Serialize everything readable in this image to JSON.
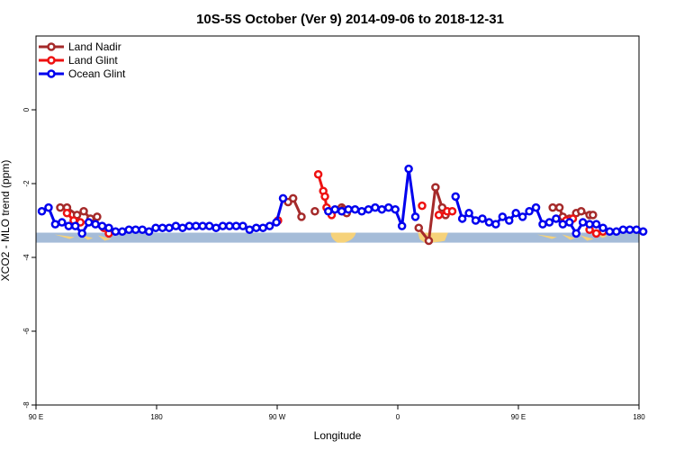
{
  "chart_data": {
    "type": "line",
    "title": "10S-5S October (Ver 9)   2014-09-06 to 2018-12-31",
    "xlabel": "Longitude",
    "ylabel": "XCO2 - MLO trend (ppm)",
    "xlim": [
      90,
      450
    ],
    "ylim": [
      -8,
      2
    ],
    "x_ticks": [
      {
        "value": 90,
        "label": "90 E"
      },
      {
        "value": 162,
        "label": "180"
      },
      {
        "value": 234,
        "label": "90 W"
      },
      {
        "value": 306,
        "label": "0"
      },
      {
        "value": 378,
        "label": "90 E"
      },
      {
        "value": 450,
        "label": "180"
      }
    ],
    "y_ticks": [
      {
        "value": 0,
        "label": "0"
      },
      {
        "value": -2,
        "label": "-2"
      },
      {
        "value": -4,
        "label": "-4"
      },
      {
        "value": -6,
        "label": "-6"
      },
      {
        "value": -8,
        "label": "-8"
      }
    ],
    "grid": false,
    "legend_position": "top-left",
    "map_band": {
      "y_top": -3.33,
      "y_bottom": -3.6,
      "ocean_color": "#a5bcd8",
      "land_color": "#f6d27a"
    },
    "series": [
      {
        "name": "Land Nadir",
        "color": "#a52a2a",
        "points": [
          [
            104.5,
            -2.65
          ],
          [
            108.5,
            -2.65
          ],
          [
            114.5,
            -2.85
          ],
          [
            118.5,
            -2.75
          ],
          [
            122.5,
            -2.95
          ],
          [
            126.5,
            -2.9
          ],
          [
            240.5,
            -2.5
          ],
          [
            243.5,
            -2.4
          ],
          [
            248.5,
            -2.9
          ],
          [
            256.5,
            -2.75
          ],
          [
            272.5,
            -2.65
          ],
          [
            273.5,
            -2.7
          ],
          [
            275.5,
            -2.8
          ],
          [
            318.5,
            -3.2
          ],
          [
            324.5,
            -3.55
          ],
          [
            328.5,
            -2.1
          ],
          [
            332.5,
            -2.65
          ],
          [
            334.5,
            -2.85
          ],
          [
            398.5,
            -2.65
          ],
          [
            402.5,
            -2.65
          ],
          [
            404.5,
            -2.9
          ],
          [
            408.5,
            -2.95
          ],
          [
            412.5,
            -2.8
          ],
          [
            415.5,
            -2.75
          ],
          [
            420.5,
            -2.85
          ],
          [
            422.5,
            -2.85
          ]
        ]
      },
      {
        "name": "Land Glint",
        "color": "#ee1111",
        "points": [
          [
            108.5,
            -2.8
          ],
          [
            112.5,
            -3.0
          ],
          [
            116.5,
            -3.05
          ],
          [
            130.5,
            -3.2
          ],
          [
            133.5,
            -3.35
          ],
          [
            234.5,
            -3.0
          ],
          [
            258.5,
            -1.75
          ],
          [
            261.5,
            -2.2
          ],
          [
            262.5,
            -2.35
          ],
          [
            263.5,
            -2.65
          ],
          [
            266.5,
            -2.85
          ],
          [
            320.5,
            -2.6
          ],
          [
            330.5,
            -2.85
          ],
          [
            335.5,
            -2.75
          ],
          [
            338.5,
            -2.75
          ],
          [
            406.5,
            -3.0
          ],
          [
            410.5,
            -2.95
          ],
          [
            420.5,
            -3.25
          ],
          [
            424.5,
            -3.35
          ],
          [
            428.5,
            -3.3
          ]
        ]
      },
      {
        "name": "Ocean Glint",
        "color": "#0000ee",
        "points": [
          [
            93.5,
            -2.75
          ],
          [
            97.5,
            -2.65
          ],
          [
            101.5,
            -3.1
          ],
          [
            105.5,
            -3.05
          ],
          [
            109.5,
            -3.15
          ],
          [
            113.5,
            -3.15
          ],
          [
            117.5,
            -3.35
          ],
          [
            121.5,
            -3.05
          ],
          [
            125.5,
            -3.1
          ],
          [
            129.5,
            -3.15
          ],
          [
            133.5,
            -3.2
          ],
          [
            137.5,
            -3.3
          ],
          [
            141.5,
            -3.3
          ],
          [
            145.5,
            -3.25
          ],
          [
            149.5,
            -3.25
          ],
          [
            153.5,
            -3.25
          ],
          [
            157.5,
            -3.3
          ],
          [
            161.5,
            -3.2
          ],
          [
            165.5,
            -3.2
          ],
          [
            169.5,
            -3.2
          ],
          [
            173.5,
            -3.15
          ],
          [
            177.5,
            -3.2
          ],
          [
            181.5,
            -3.15
          ],
          [
            185.5,
            -3.15
          ],
          [
            189.5,
            -3.15
          ],
          [
            193.5,
            -3.15
          ],
          [
            197.5,
            -3.2
          ],
          [
            201.5,
            -3.15
          ],
          [
            205.5,
            -3.15
          ],
          [
            209.5,
            -3.15
          ],
          [
            213.5,
            -3.15
          ],
          [
            217.5,
            -3.25
          ],
          [
            221.5,
            -3.2
          ],
          [
            225.5,
            -3.2
          ],
          [
            229.5,
            -3.15
          ],
          [
            233.5,
            -3.05
          ],
          [
            237.5,
            -2.4
          ],
          [
            264.5,
            -2.75
          ],
          [
            268.5,
            -2.7
          ],
          [
            272.5,
            -2.75
          ],
          [
            276.5,
            -2.7
          ],
          [
            280.5,
            -2.7
          ],
          [
            284.5,
            -2.75
          ],
          [
            288.5,
            -2.7
          ],
          [
            292.5,
            -2.65
          ],
          [
            296.5,
            -2.7
          ],
          [
            300.5,
            -2.65
          ],
          [
            304.5,
            -2.7
          ],
          [
            308.5,
            -3.15
          ],
          [
            312.5,
            -1.6
          ],
          [
            316.5,
            -2.9
          ],
          [
            340.5,
            -2.35
          ],
          [
            344.5,
            -2.95
          ],
          [
            348.5,
            -2.8
          ],
          [
            352.5,
            -3.0
          ],
          [
            356.5,
            -2.95
          ],
          [
            360.5,
            -3.05
          ],
          [
            364.5,
            -3.1
          ],
          [
            368.5,
            -2.9
          ],
          [
            372.5,
            -3.0
          ],
          [
            376.5,
            -2.8
          ],
          [
            380.5,
            -2.9
          ],
          [
            384.5,
            -2.75
          ],
          [
            388.5,
            -2.65
          ],
          [
            392.5,
            -3.1
          ],
          [
            396.5,
            -3.05
          ],
          [
            400.5,
            -2.95
          ],
          [
            404.5,
            -3.1
          ],
          [
            408.5,
            -3.05
          ],
          [
            412.5,
            -3.35
          ],
          [
            416.5,
            -3.05
          ],
          [
            420.5,
            -3.1
          ],
          [
            424.5,
            -3.1
          ],
          [
            428.5,
            -3.2
          ],
          [
            432.5,
            -3.3
          ],
          [
            436.5,
            -3.3
          ],
          [
            440.5,
            -3.25
          ],
          [
            444.5,
            -3.25
          ],
          [
            448.5,
            -3.25
          ],
          [
            452.5,
            -3.3
          ]
        ]
      }
    ]
  }
}
